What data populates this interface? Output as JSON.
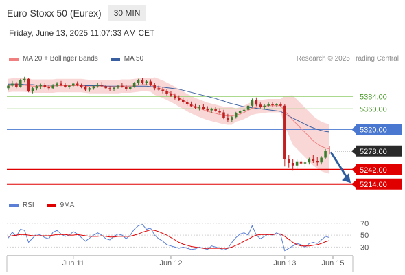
{
  "header": {
    "title": "Euro Stoxx 50 (Eurex)",
    "timeframe": "30 MIN",
    "datetime": "Friday, June 13, 2025 11:07:33 AM CET",
    "credit": "Research © 2025 Trading Central"
  },
  "legend": {
    "ma20_label": "MA 20 + Bollinger Bands",
    "ma50_label": "MA 50",
    "rsi_label": "RSI",
    "rsi_ma_label": "9MA"
  },
  "colors": {
    "bollinger_fill": "#f7c6c6",
    "ma20": "#f08080",
    "ma50": "#3a5fa0",
    "candle_up": "#3a7d2c",
    "candle_down": "#c02020",
    "green_level": "#8fce6a",
    "blue_level": "#4a78d0",
    "red_level": "#e00000",
    "arrow": "#2d5d9f",
    "rsi": "#5b7fd6",
    "rsi_ma": "#e00000"
  },
  "chart_data": {
    "type": "candlestick",
    "x_ticks": [
      "Jun 11",
      "Jun 12",
      "Jun 13",
      "Jun 15"
    ],
    "ylim": [
      5195,
      5435
    ],
    "levels": [
      {
        "value": 5384.0,
        "label": "5384.00",
        "kind": "resistance"
      },
      {
        "value": 5360.0,
        "label": "5360.00",
        "kind": "resistance"
      },
      {
        "value": 5320.0,
        "label": "5320.00",
        "kind": "pivot"
      },
      {
        "value": 5278.0,
        "label": "5278.00",
        "kind": "last"
      },
      {
        "value": 5242.0,
        "label": "5242.00",
        "kind": "support"
      },
      {
        "value": 5214.0,
        "label": "5214.00",
        "kind": "support"
      }
    ],
    "candles": [
      [
        5400,
        5408,
        5396,
        5405
      ],
      [
        5405,
        5414,
        5402,
        5409
      ],
      [
        5409,
        5412,
        5400,
        5403
      ],
      [
        5403,
        5418,
        5401,
        5415
      ],
      [
        5415,
        5422,
        5412,
        5418
      ],
      [
        5418,
        5420,
        5392,
        5395
      ],
      [
        5395,
        5402,
        5390,
        5400
      ],
      [
        5400,
        5407,
        5396,
        5404
      ],
      [
        5404,
        5409,
        5399,
        5406
      ],
      [
        5406,
        5411,
        5400,
        5402
      ],
      [
        5402,
        5406,
        5396,
        5400
      ],
      [
        5400,
        5408,
        5398,
        5405
      ],
      [
        5405,
        5412,
        5402,
        5409
      ],
      [
        5409,
        5414,
        5404,
        5407
      ],
      [
        5407,
        5410,
        5401,
        5403
      ],
      [
        5403,
        5407,
        5398,
        5405
      ],
      [
        5405,
        5411,
        5403,
        5409
      ],
      [
        5409,
        5413,
        5404,
        5406
      ],
      [
        5406,
        5409,
        5400,
        5402
      ],
      [
        5402,
        5405,
        5395,
        5397
      ],
      [
        5397,
        5402,
        5393,
        5400
      ],
      [
        5400,
        5406,
        5397,
        5404
      ],
      [
        5404,
        5410,
        5401,
        5407
      ],
      [
        5407,
        5412,
        5402,
        5404
      ],
      [
        5404,
        5407,
        5398,
        5400
      ],
      [
        5400,
        5404,
        5395,
        5398
      ],
      [
        5398,
        5402,
        5394,
        5401
      ],
      [
        5401,
        5407,
        5399,
        5405
      ],
      [
        5405,
        5410,
        5401,
        5403
      ],
      [
        5403,
        5406,
        5395,
        5398
      ],
      [
        5398,
        5405,
        5396,
        5403
      ],
      [
        5403,
        5412,
        5401,
        5410
      ],
      [
        5410,
        5418,
        5407,
        5416
      ],
      [
        5416,
        5420,
        5408,
        5411
      ],
      [
        5411,
        5416,
        5406,
        5413
      ],
      [
        5413,
        5417,
        5404,
        5406
      ],
      [
        5406,
        5410,
        5396,
        5400
      ],
      [
        5400,
        5405,
        5394,
        5397
      ],
      [
        5397,
        5402,
        5390,
        5394
      ],
      [
        5394,
        5398,
        5386,
        5389
      ],
      [
        5389,
        5394,
        5383,
        5386
      ],
      [
        5386,
        5390,
        5378,
        5381
      ],
      [
        5381,
        5386,
        5375,
        5377
      ],
      [
        5377,
        5382,
        5370,
        5373
      ],
      [
        5373,
        5378,
        5366,
        5369
      ],
      [
        5369,
        5374,
        5363,
        5365
      ],
      [
        5365,
        5370,
        5359,
        5362
      ],
      [
        5362,
        5367,
        5357,
        5364
      ],
      [
        5364,
        5369,
        5358,
        5360
      ],
      [
        5360,
        5365,
        5354,
        5357
      ],
      [
        5357,
        5362,
        5352,
        5359
      ],
      [
        5359,
        5364,
        5354,
        5356
      ],
      [
        5356,
        5361,
        5350,
        5353
      ],
      [
        5353,
        5358,
        5340,
        5343
      ],
      [
        5343,
        5350,
        5334,
        5338
      ],
      [
        5338,
        5346,
        5334,
        5344
      ],
      [
        5344,
        5354,
        5341,
        5351
      ],
      [
        5351,
        5358,
        5348,
        5355
      ],
      [
        5355,
        5361,
        5352,
        5358
      ],
      [
        5358,
        5368,
        5356,
        5366
      ],
      [
        5366,
        5380,
        5363,
        5377
      ],
      [
        5377,
        5382,
        5365,
        5368
      ],
      [
        5368,
        5372,
        5361,
        5364
      ],
      [
        5364,
        5369,
        5360,
        5366
      ],
      [
        5366,
        5372,
        5363,
        5369
      ],
      [
        5369,
        5373,
        5364,
        5367
      ],
      [
        5367,
        5371,
        5363,
        5369
      ],
      [
        5369,
        5372,
        5363,
        5366
      ],
      [
        5366,
        5369,
        5248,
        5262
      ],
      [
        5262,
        5270,
        5246,
        5255
      ],
      [
        5255,
        5262,
        5240,
        5250
      ],
      [
        5250,
        5262,
        5243,
        5258
      ],
      [
        5258,
        5266,
        5250,
        5254
      ],
      [
        5254,
        5260,
        5247,
        5256
      ],
      [
        5256,
        5265,
        5252,
        5262
      ],
      [
        5262,
        5270,
        5255,
        5259
      ],
      [
        5259,
        5266,
        5250,
        5256
      ],
      [
        5256,
        5268,
        5252,
        5265
      ],
      [
        5265,
        5282,
        5262,
        5279
      ],
      [
        5279,
        5287,
        5272,
        5278
      ]
    ],
    "ma20": [
      5405,
      5406,
      5406,
      5406,
      5406,
      5405,
      5404,
      5404,
      5404,
      5404,
      5404,
      5404,
      5405,
      5405,
      5405,
      5405,
      5405,
      5405,
      5405,
      5404,
      5403,
      5403,
      5403,
      5403,
      5403,
      5403,
      5403,
      5403,
      5404,
      5404,
      5404,
      5405,
      5406,
      5407,
      5407,
      5406,
      5404,
      5401,
      5398,
      5394,
      5390,
      5386,
      5381,
      5377,
      5372,
      5368,
      5364,
      5361,
      5358,
      5355,
      5353,
      5351,
      5349,
      5347,
      5346,
      5346,
      5348,
      5350,
      5353,
      5357,
      5361,
      5363,
      5364,
      5365,
      5366,
      5366,
      5366,
      5366,
      5356,
      5347,
      5338,
      5330,
      5322,
      5314,
      5306,
      5298,
      5292,
      5287,
      5284,
      5282
    ],
    "ma50": [
      5408,
      5408,
      5408,
      5408,
      5407,
      5407,
      5407,
      5406,
      5406,
      5406,
      5406,
      5406,
      5406,
      5406,
      5406,
      5406,
      5406,
      5405,
      5405,
      5405,
      5405,
      5405,
      5405,
      5405,
      5404,
      5404,
      5404,
      5404,
      5404,
      5404,
      5404,
      5404,
      5404,
      5404,
      5404,
      5403,
      5403,
      5403,
      5402,
      5401,
      5400,
      5399,
      5398,
      5396,
      5394,
      5392,
      5390,
      5388,
      5386,
      5384,
      5382,
      5380,
      5377,
      5375,
      5372,
      5370,
      5368,
      5366,
      5364,
      5363,
      5362,
      5361,
      5360,
      5359,
      5358,
      5357,
      5356,
      5355,
      5350,
      5346,
      5342,
      5338,
      5334,
      5330,
      5326,
      5323,
      5320,
      5318,
      5316,
      5315
    ],
    "rsi": {
      "ylim": [
        20,
        78
      ],
      "ticks": [
        70,
        50,
        30
      ],
      "rsi": [
        45,
        55,
        48,
        60,
        58,
        38,
        45,
        52,
        50,
        46,
        44,
        55,
        58,
        52,
        48,
        50,
        56,
        52,
        46,
        40,
        45,
        50,
        54,
        50,
        44,
        42,
        48,
        52,
        50,
        44,
        50,
        60,
        66,
        68,
        60,
        62,
        50,
        44,
        40,
        34,
        32,
        30,
        28,
        30,
        28,
        26,
        27,
        30,
        28,
        26,
        32,
        30,
        28,
        25,
        28,
        38,
        46,
        52,
        54,
        50,
        66,
        50,
        44,
        48,
        52,
        50,
        54,
        50,
        24,
        28,
        32,
        36,
        34,
        30,
        36,
        38,
        36,
        42,
        48,
        46
      ],
      "ma": [
        48,
        49,
        50,
        51,
        51,
        50,
        49,
        49,
        49,
        49,
        49,
        50,
        51,
        51,
        51,
        50,
        50,
        51,
        50,
        49,
        48,
        48,
        48,
        49,
        48,
        47,
        47,
        48,
        48,
        48,
        48,
        50,
        52,
        55,
        57,
        59,
        58,
        56,
        53,
        50,
        46,
        42,
        38,
        35,
        33,
        31,
        30,
        29,
        28,
        28,
        28,
        28,
        28,
        28,
        28,
        30,
        33,
        36,
        40,
        43,
        47,
        50,
        51,
        51,
        51,
        51,
        52,
        52,
        48,
        43,
        38,
        34,
        32,
        32,
        32,
        33,
        34,
        36,
        39,
        41
      ]
    }
  }
}
